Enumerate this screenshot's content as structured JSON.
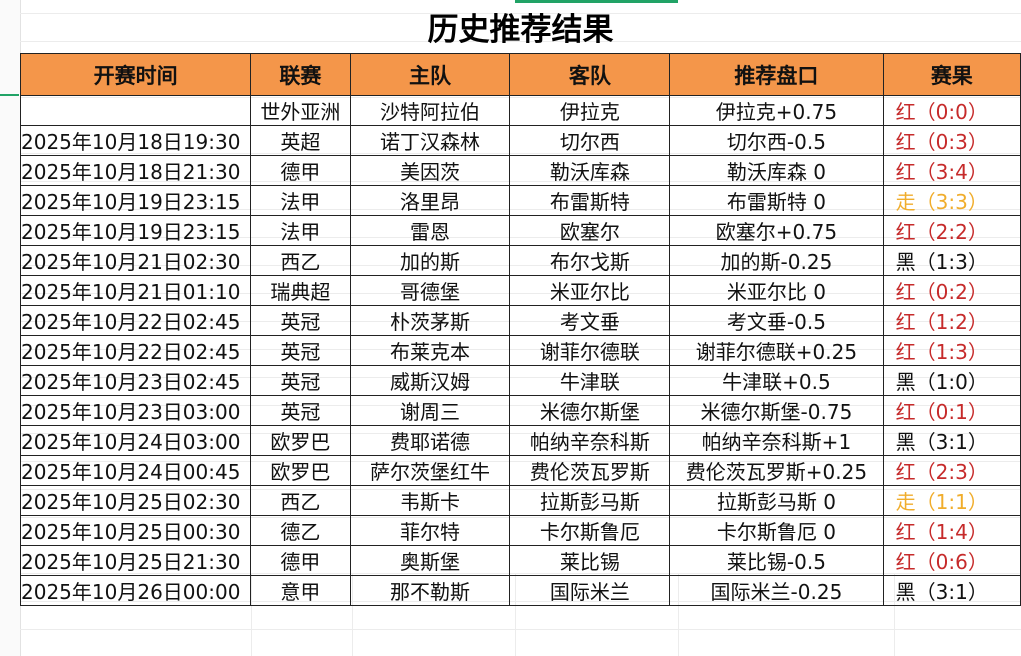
{
  "title": "历史推荐结果",
  "columns": [
    "开赛时间",
    "联赛",
    "主队",
    "客队",
    "推荐盘口",
    "赛果"
  ],
  "colors": {
    "header_bg": "#f4964a",
    "win": "#c62a2a",
    "push": "#f0ad2c",
    "loss": "#111111",
    "selection": "#21a366"
  },
  "rows": [
    {
      "time": "",
      "league": "世外亚洲",
      "home": "沙特阿拉伯",
      "away": "伊拉克",
      "pick": "伊拉克+0.75",
      "result": "红（0:0）",
      "type": "red"
    },
    {
      "time": "2025年10月18日19:30",
      "league": "英超",
      "home": "诺丁汉森林",
      "away": "切尔西",
      "pick": "切尔西-0.5",
      "result": "红（0:3）",
      "type": "red"
    },
    {
      "time": "2025年10月18日21:30",
      "league": "德甲",
      "home": "美因茨",
      "away": "勒沃库森",
      "pick": "勒沃库森 0",
      "result": "红（3:4）",
      "type": "red"
    },
    {
      "time": "2025年10月19日23:15",
      "league": "法甲",
      "home": "洛里昂",
      "away": "布雷斯特",
      "pick": "布雷斯特 0",
      "result": "走（3:3）",
      "type": "push"
    },
    {
      "time": "2025年10月19日23:15",
      "league": "法甲",
      "home": "雷恩",
      "away": "欧塞尔",
      "pick": "欧塞尔+0.75",
      "result": "红（2:2）",
      "type": "red"
    },
    {
      "time": "2025年10月21日02:30",
      "league": "西乙",
      "home": "加的斯",
      "away": "布尔戈斯",
      "pick": "加的斯-0.25",
      "result": "黑（1:3）",
      "type": "black"
    },
    {
      "time": "2025年10月21日01:10",
      "league": "瑞典超",
      "home": "哥德堡",
      "away": "米亚尔比",
      "pick": "米亚尔比 0",
      "result": "红（0:2）",
      "type": "red"
    },
    {
      "time": "2025年10月22日02:45",
      "league": "英冠",
      "home": "朴茨茅斯",
      "away": "考文垂",
      "pick": "考文垂-0.5",
      "result": "红（1:2）",
      "type": "red"
    },
    {
      "time": "2025年10月22日02:45",
      "league": "英冠",
      "home": "布莱克本",
      "away": "谢菲尔德联",
      "pick": "谢菲尔德联+0.25",
      "result": "红（1:3）",
      "type": "red"
    },
    {
      "time": "2025年10月23日02:45",
      "league": "英冠",
      "home": "威斯汉姆",
      "away": "牛津联",
      "pick": "牛津联+0.5",
      "result": "黑（1:0）",
      "type": "black"
    },
    {
      "time": "2025年10月23日03:00",
      "league": "英冠",
      "home": "谢周三",
      "away": "米德尔斯堡",
      "pick": "米德尔斯堡-0.75",
      "result": "红（0:1）",
      "type": "red"
    },
    {
      "time": "2025年10月24日03:00",
      "league": "欧罗巴",
      "home": "费耶诺德",
      "away": "帕纳辛奈科斯",
      "pick": "帕纳辛奈科斯+1",
      "result": "黑（3:1）",
      "type": "black"
    },
    {
      "time": "2025年10月24日00:45",
      "league": "欧罗巴",
      "home": "萨尔茨堡红牛",
      "away": "费伦茨瓦罗斯",
      "pick": "费伦茨瓦罗斯+0.25",
      "result": "红（2:3）",
      "type": "red"
    },
    {
      "time": "2025年10月25日02:30",
      "league": "西乙",
      "home": "韦斯卡",
      "away": "拉斯彭马斯",
      "pick": "拉斯彭马斯 0",
      "result": "走（1:1）",
      "type": "push"
    },
    {
      "time": "2025年10月25日00:30",
      "league": "德乙",
      "home": "菲尔特",
      "away": "卡尔斯鲁厄",
      "pick": "卡尔斯鲁厄 0",
      "result": "红（1:4）",
      "type": "red"
    },
    {
      "time": "2025年10月25日21:30",
      "league": "德甲",
      "home": "奥斯堡",
      "away": "莱比锡",
      "pick": "莱比锡-0.5",
      "result": "红（0:6）",
      "type": "red"
    },
    {
      "time": "2025年10月26日00:00",
      "league": "意甲",
      "home": "那不勒斯",
      "away": "国际米兰",
      "pick": "国际米兰-0.25",
      "result": "黑（3:1）",
      "type": "black"
    }
  ]
}
